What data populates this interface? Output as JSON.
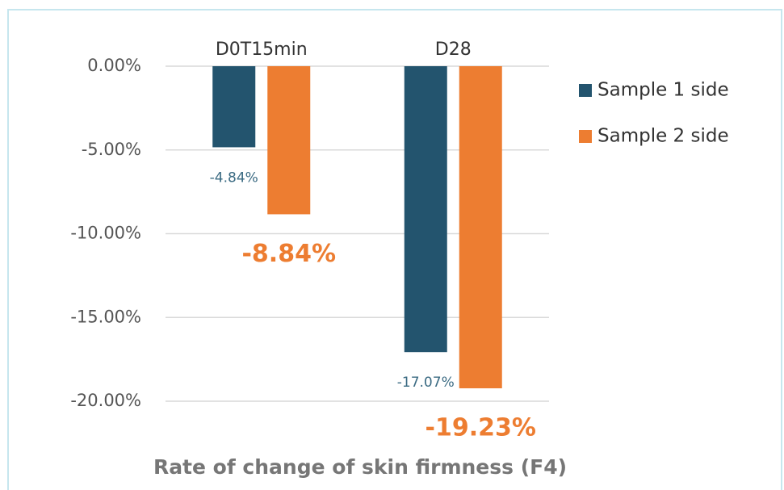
{
  "chart_data": {
    "type": "bar",
    "x_label": "Rate of change of skin firmness (F4)",
    "categories": [
      "D0T15min",
      "D28"
    ],
    "series": [
      {
        "name": "Sample 1 side",
        "color": "#23546e",
        "values": [
          -4.84,
          -17.07
        ],
        "value_labels": [
          "-4.84%",
          "-17.07%"
        ]
      },
      {
        "name": "Sample 2 side",
        "color": "#ed7d31",
        "values": [
          -8.84,
          -19.23
        ],
        "value_labels": [
          "-8.84%",
          "-19.23%"
        ]
      }
    ],
    "ylim": [
      -20,
      0
    ],
    "yticks": [
      {
        "value": 0,
        "label": "0.00%"
      },
      {
        "value": -5,
        "label": "-5.00%"
      },
      {
        "value": -10,
        "label": "-10.00%"
      },
      {
        "value": -15,
        "label": "-15.00%"
      },
      {
        "value": -20,
        "label": "-20.00%"
      }
    ],
    "grid": true,
    "legend": "right"
  }
}
